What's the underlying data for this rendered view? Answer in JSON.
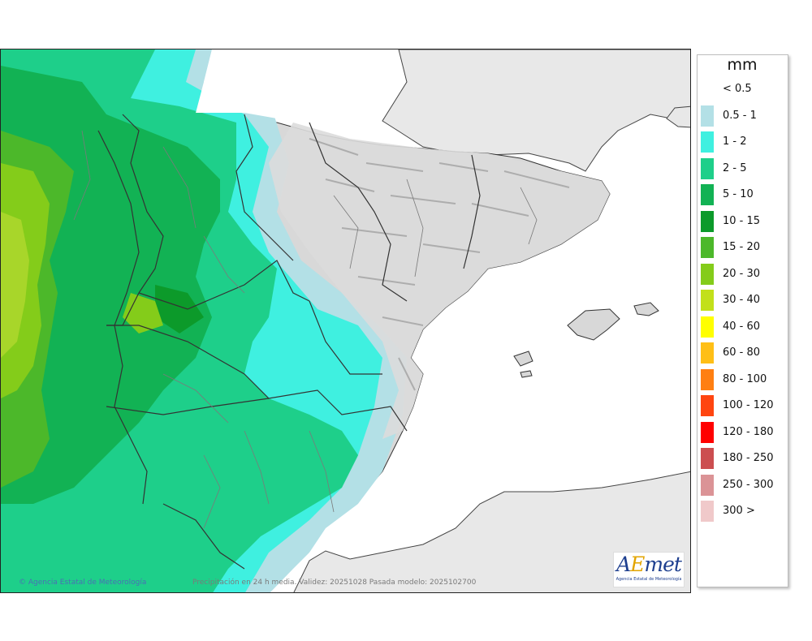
{
  "legend": {
    "unit": "mm",
    "items": [
      {
        "label": "< 0.5",
        "color": "#ffffff"
      },
      {
        "label": "0.5 - 1",
        "color": "#b3e0e6"
      },
      {
        "label": "1 - 2",
        "color": "#3ff0e0"
      },
      {
        "label": "2 - 5",
        "color": "#1ecf8a"
      },
      {
        "label": "5 - 10",
        "color": "#12b254"
      },
      {
        "label": "10 - 15",
        "color": "#0c9a2a"
      },
      {
        "label": "15 - 20",
        "color": "#4cb82a"
      },
      {
        "label": "20 - 30",
        "color": "#84cc1a"
      },
      {
        "label": "30 - 40",
        "color": "#c2e01a"
      },
      {
        "label": "40 - 60",
        "color": "#ffff00"
      },
      {
        "label": "60 - 80",
        "color": "#ffbf16"
      },
      {
        "label": "80 - 100",
        "color": "#ff7f12"
      },
      {
        "label": "100 - 120",
        "color": "#ff4510"
      },
      {
        "label": "120 - 180",
        "color": "#ff0000"
      },
      {
        "label": "180 - 250",
        "color": "#cc4e50"
      },
      {
        "label": "250 - 300",
        "color": "#db9396"
      },
      {
        "label": "300 >",
        "color": "#f0c9ca"
      }
    ]
  },
  "map": {
    "credit_left": "© Agencia Estatal de Meteorología",
    "caption": "Precipitación en 24 h media. Validez: 20251028 Pasada modelo: 2025102700",
    "logo": {
      "brand_a": "A",
      "brand_b": "E",
      "brand_c": "met",
      "sub": "Agencia Estatal de Meteorología"
    }
  }
}
